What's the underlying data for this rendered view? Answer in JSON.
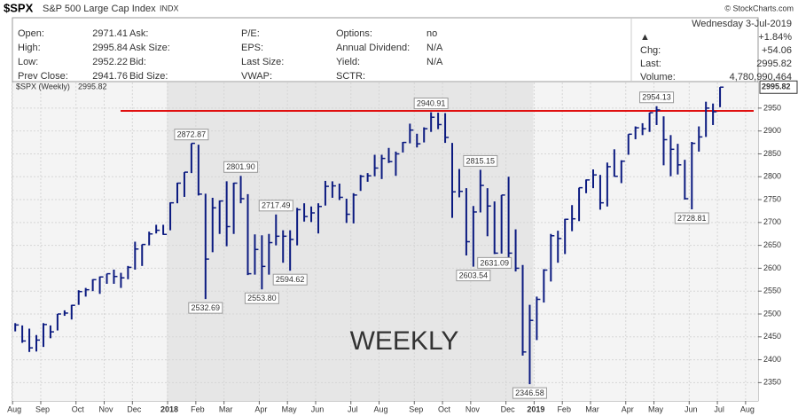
{
  "header": {
    "symbol": "$SPX",
    "name": "S&P 500 Large Cap Index",
    "exchange": "INDX",
    "credit": "© StockCharts.com"
  },
  "quote": {
    "columns": [
      [
        [
          "Open:",
          "2971.41"
        ],
        [
          "High:",
          "2995.84"
        ],
        [
          "Low:",
          "2952.22"
        ],
        [
          "Prev Close:",
          "2941.76"
        ]
      ],
      [
        [
          "Ask:"
        ],
        [
          "Ask Size:"
        ],
        [
          "Bid:"
        ],
        [
          "Bid Size:"
        ]
      ],
      [
        [
          "P/E:"
        ],
        [
          "EPS:"
        ],
        [
          "Last Size:"
        ],
        [
          "VWAP:"
        ]
      ],
      [
        [
          "Options:",
          "no"
        ],
        [
          "Annual Dividend:",
          "N/A"
        ],
        [
          "Yield:",
          "N/A"
        ],
        [
          "SCTR:"
        ]
      ]
    ],
    "date": "Wednesday  3-Jul-2019",
    "change_pct": "+1.84%",
    "right": [
      [
        "Chg:",
        "+54.06"
      ],
      [
        "Last:",
        "2995.82"
      ],
      [
        "Volume:",
        "4,780,990,464"
      ]
    ]
  },
  "chart_data": {
    "type": "ohlc",
    "name": "$SPX (Weekly)",
    "color": "#0b1a80",
    "high": [
      2480,
      2475,
      2468,
      2454,
      2480,
      2475,
      2500,
      2508,
      2520,
      2552,
      2557,
      2576,
      2582,
      2588,
      2597,
      2590,
      2605,
      2658,
      2652,
      2680,
      2695,
      2695,
      2744,
      2787,
      2810,
      2872.87,
      2870,
      2763,
      2754,
      2748,
      2790,
      2787,
      2801.9,
      2762,
      2674,
      2672,
      2675,
      2717.49,
      2683,
      2683,
      2732,
      2742,
      2735,
      2742,
      2791,
      2790,
      2785,
      2752,
      2764,
      2804,
      2808,
      2848,
      2848,
      2863,
      2855,
      2876,
      2916,
      2894,
      2908,
      2940.91,
      2940,
      2939,
      2874,
      2817,
      2775,
      2736,
      2815.15,
      2775,
      2746,
      2760,
      2800,
      2685,
      2607,
      2520,
      2538,
      2598,
      2675,
      2682,
      2708,
      2738,
      2776,
      2794,
      2816,
      2804,
      2831,
      2860,
      2836,
      2893,
      2910,
      2917,
      2940,
      2954.13,
      2932,
      2891,
      2872,
      2837,
      2876,
      2910,
      2964,
      2960,
      2996
    ],
    "low": [
      2462,
      2437,
      2417,
      2418,
      2428,
      2447,
      2464,
      2496,
      2488,
      2520,
      2538,
      2550,
      2544,
      2566,
      2566,
      2557,
      2576,
      2597,
      2605,
      2650,
      2676,
      2673,
      2683,
      2742,
      2756,
      2808,
      2759,
      2532.69,
      2635,
      2675,
      2648,
      2675,
      2742,
      2585,
      2586,
      2553.8,
      2586,
      2650,
      2612,
      2594.62,
      2650,
      2702,
      2701,
      2676,
      2737,
      2754,
      2749,
      2699,
      2698,
      2769,
      2789,
      2801,
      2795,
      2830,
      2802,
      2853,
      2873,
      2864,
      2875,
      2898,
      2904,
      2874,
      2710,
      2755,
      2628,
      2603.54,
      2722,
      2670,
      2631.09,
      2632,
      2621,
      2593,
      2409,
      2346.58,
      2443,
      2525,
      2571,
      2612,
      2631,
      2681,
      2703,
      2764,
      2775,
      2728,
      2735,
      2800,
      2786,
      2848,
      2882,
      2891,
      2898,
      2913,
      2825,
      2801,
      2805,
      2750,
      2728.81,
      2855,
      2887,
      2913,
      2952
    ],
    "close": [
      2476,
      2441,
      2426,
      2443,
      2477,
      2461,
      2500,
      2502,
      2519,
      2549,
      2553,
      2575,
      2581,
      2588,
      2582,
      2579,
      2602,
      2642,
      2652,
      2675,
      2683,
      2674,
      2743,
      2786,
      2810,
      2873,
      2762,
      2620,
      2732,
      2747,
      2691,
      2786,
      2752,
      2588,
      2641,
      2604,
      2656,
      2670,
      2670,
      2663,
      2728,
      2713,
      2721,
      2735,
      2779,
      2780,
      2755,
      2718,
      2760,
      2801,
      2802,
      2819,
      2840,
      2833,
      2850,
      2875,
      2902,
      2872,
      2905,
      2930,
      2914,
      2886,
      2767,
      2768,
      2658,
      2723,
      2781,
      2736,
      2633,
      2760,
      2633,
      2600,
      2417,
      2486,
      2532,
      2596,
      2671,
      2665,
      2707,
      2708,
      2776,
      2793,
      2804,
      2743,
      2822,
      2801,
      2834,
      2893,
      2907,
      2905,
      2940,
      2946,
      2881,
      2860,
      2826,
      2752,
      2873,
      2887,
      2950,
      2942,
      2995.82
    ],
    "xlim": [
      -0.4,
      105.4
    ],
    "ylim": [
      2310,
      3006
    ],
    "xticks": [
      {
        "value": 0,
        "label": "Aug"
      },
      {
        "value": 4,
        "label": "Sep"
      },
      {
        "value": 9,
        "label": "Oct"
      },
      {
        "value": 13,
        "label": "Nov"
      },
      {
        "value": 17,
        "label": "Dec"
      },
      {
        "value": 22,
        "label": "2018"
      },
      {
        "value": 26,
        "label": "Feb"
      },
      {
        "value": 30,
        "label": "Mar"
      },
      {
        "value": 35,
        "label": "Apr"
      },
      {
        "value": 39,
        "label": "May"
      },
      {
        "value": 43,
        "label": "Jun"
      },
      {
        "value": 48,
        "label": "Jul"
      },
      {
        "value": 52,
        "label": "Aug"
      },
      {
        "value": 57,
        "label": "Sep"
      },
      {
        "value": 61,
        "label": "Oct"
      },
      {
        "value": 65,
        "label": "Nov"
      },
      {
        "value": 70,
        "label": "Dec"
      },
      {
        "value": 74,
        "label": "2019"
      },
      {
        "value": 78,
        "label": "Feb"
      },
      {
        "value": 82,
        "label": "Mar"
      },
      {
        "value": 87,
        "label": "Apr"
      },
      {
        "value": 91,
        "label": "May"
      },
      {
        "value": 96,
        "label": "Jun"
      },
      {
        "value": 100,
        "label": "Jul"
      },
      {
        "value": 104,
        "label": "Aug"
      }
    ],
    "yticks": [
      2350,
      2400,
      2450,
      2500,
      2550,
      2600,
      2650,
      2700,
      2750,
      2800,
      2850,
      2900,
      2950
    ],
    "grid": true,
    "shaded_range": [
      21.5,
      73.5
    ],
    "horizontal_line": {
      "value": 2944,
      "color": "#e01010"
    },
    "annotations": [
      {
        "label": "2872.87",
        "bar": 25,
        "field": "high"
      },
      {
        "label": "2532.69",
        "bar": 27,
        "field": "low"
      },
      {
        "label": "2801.90",
        "bar": 32,
        "field": "high"
      },
      {
        "label": "2717.49",
        "bar": 37,
        "field": "high"
      },
      {
        "label": "2553.80",
        "bar": 35,
        "field": "low"
      },
      {
        "label": "2594.62",
        "bar": 39,
        "field": "low"
      },
      {
        "label": "2940.91",
        "bar": 59,
        "field": "high"
      },
      {
        "label": "2815.15",
        "bar": 66,
        "field": "high"
      },
      {
        "label": "2603.54",
        "bar": 65,
        "field": "low"
      },
      {
        "label": "2631.09",
        "bar": 68,
        "field": "low"
      },
      {
        "label": "2346.58",
        "bar": 73,
        "field": "low"
      },
      {
        "label": "2954.13",
        "bar": 91,
        "field": "high"
      },
      {
        "label": "2728.81",
        "bar": 96,
        "field": "low"
      }
    ],
    "watermark": "WEEKLY"
  }
}
